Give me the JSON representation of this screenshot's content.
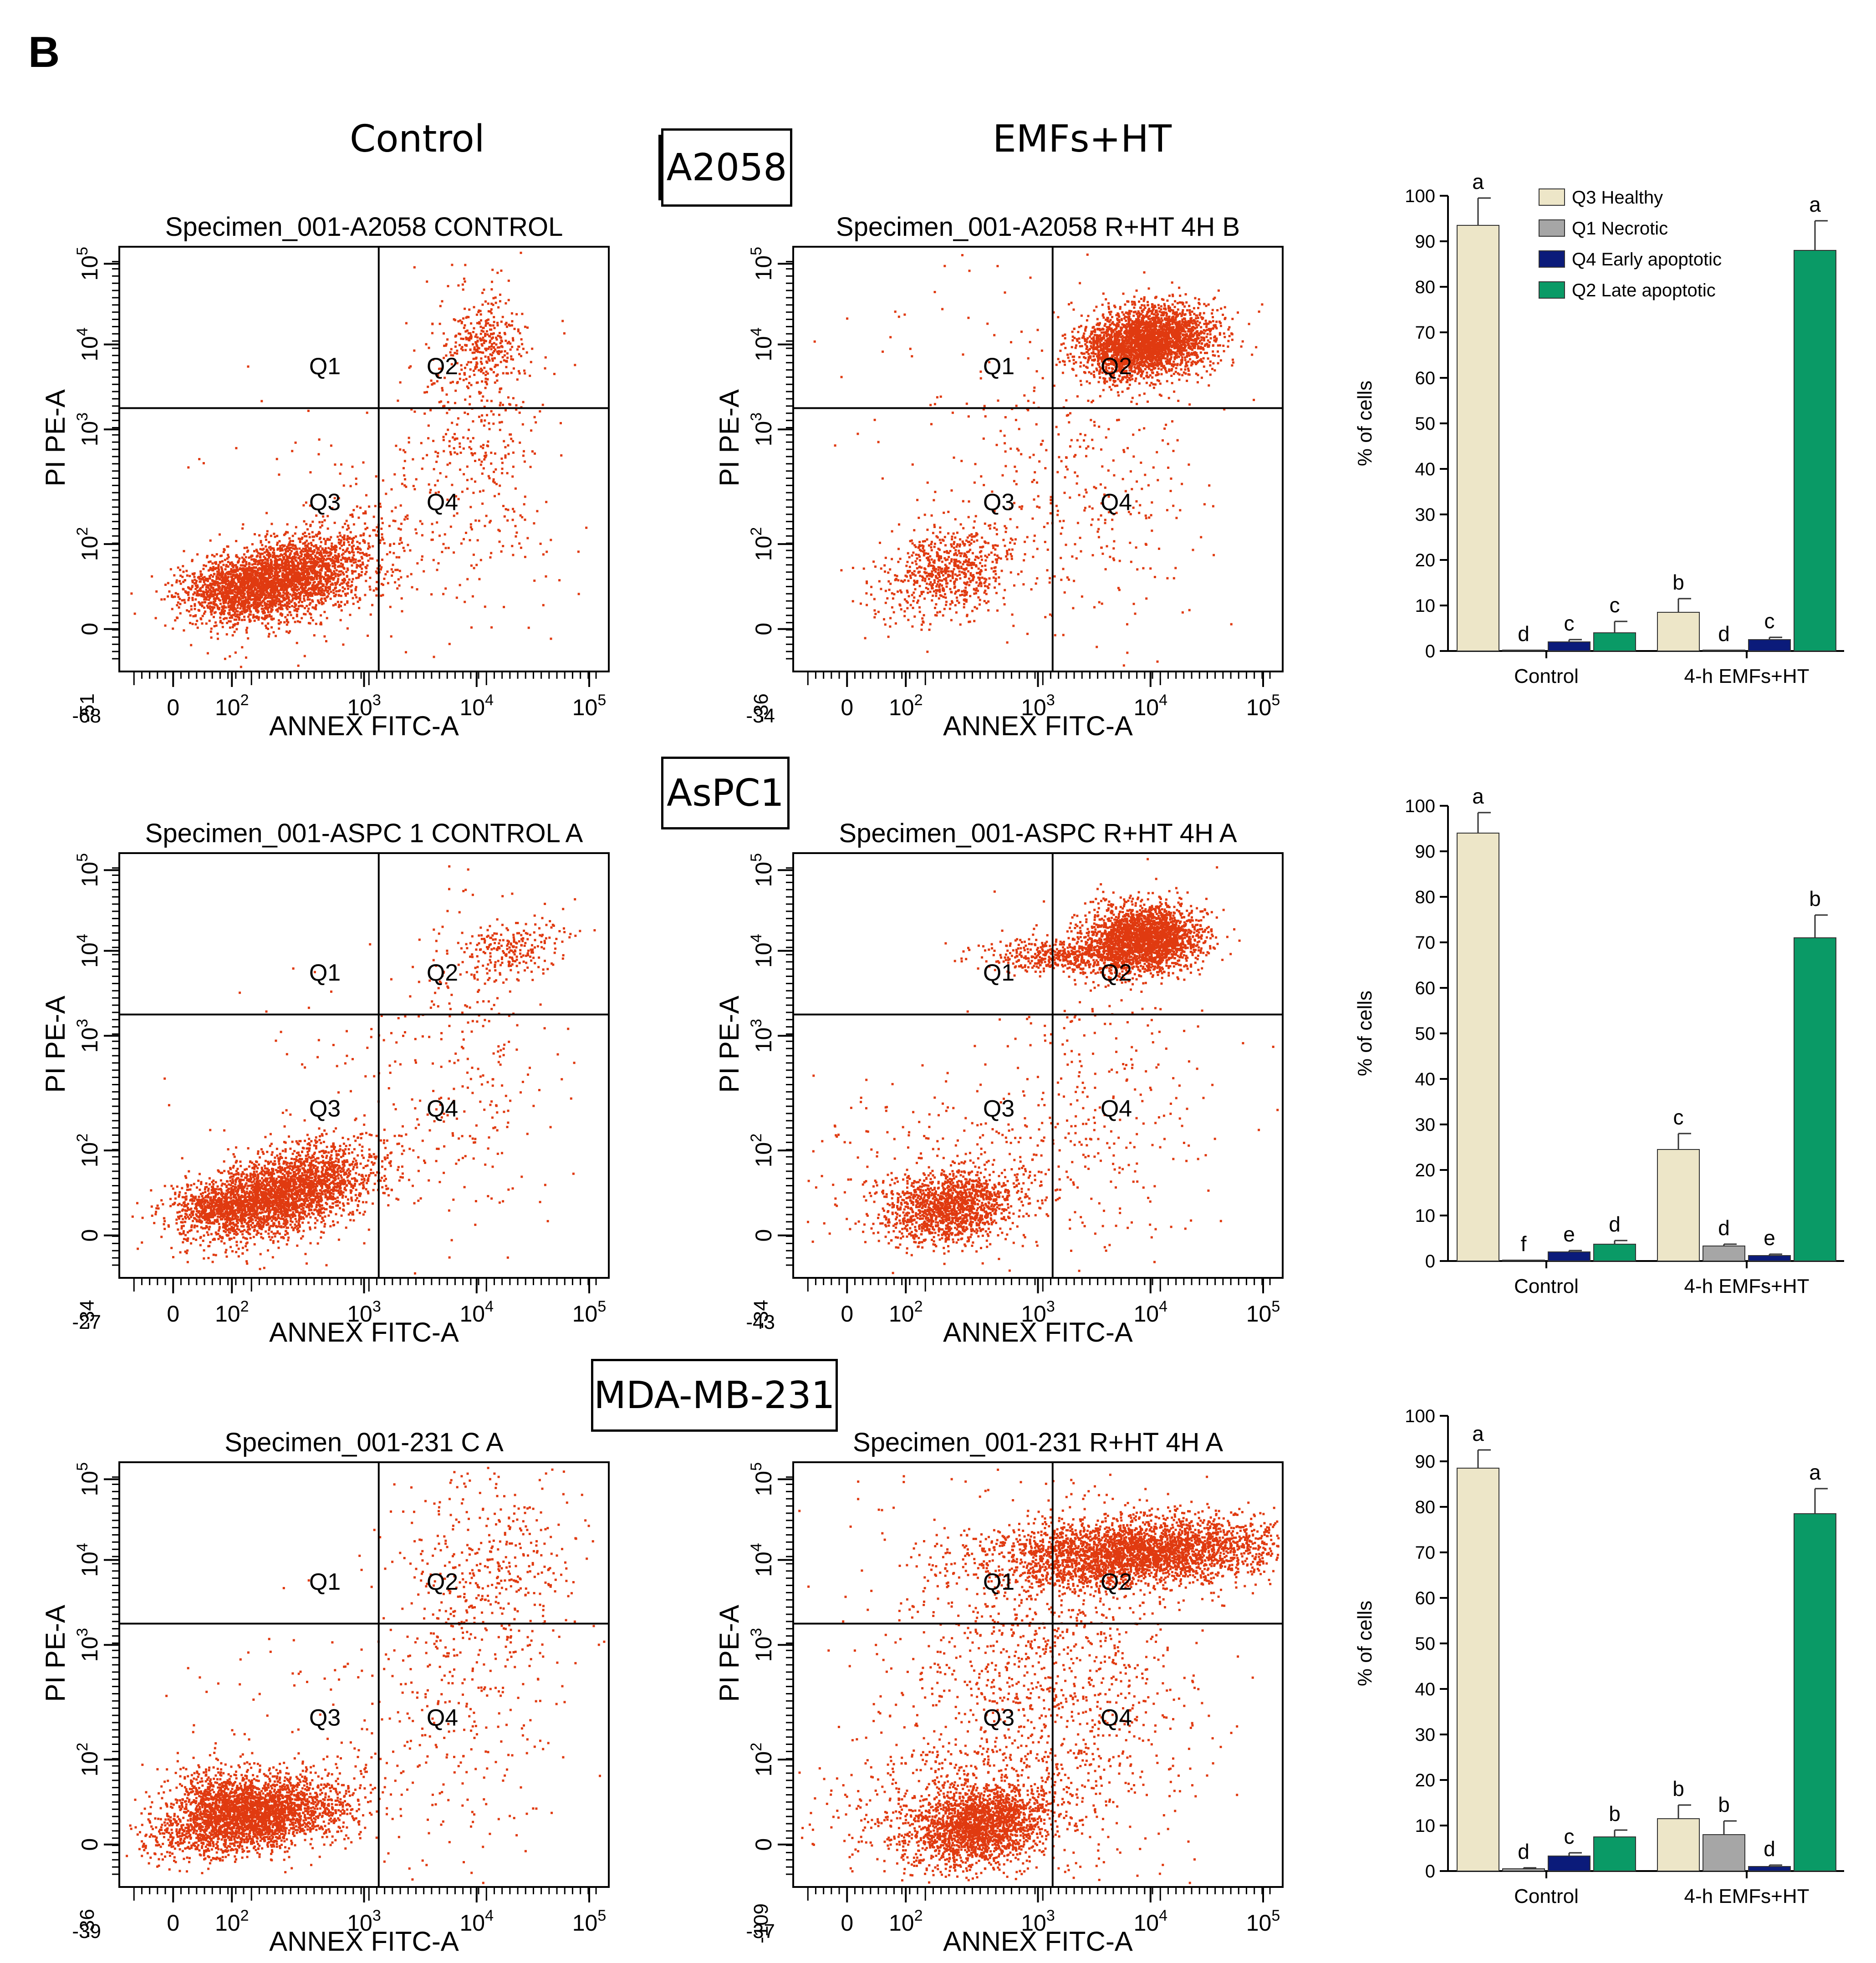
{
  "panel_letter": "B",
  "column_titles": {
    "control": "Control",
    "treated": "EMFs+HT"
  },
  "cell_lines": [
    "A2058",
    "AsPC1",
    "MDA-MB-231"
  ],
  "legend": {
    "q3": {
      "label": "Q3 Healthy",
      "color": "#ede6c8"
    },
    "q1": {
      "label": "Q1 Necrotic",
      "color": "#a6a6a6"
    },
    "q4": {
      "label": "Q4 Early apoptotic",
      "color": "#0b1b7a"
    },
    "q2": {
      "label": "Q2 Late apoptotic",
      "color": "#0a9a66"
    }
  },
  "dot_color": "#e03a10",
  "flow_plots": [
    {
      "title": "Specimen_001-A2058 CONTROL",
      "xlabel": "ANNEX FITC-A",
      "ylabel": "PI PE-A",
      "x_ticks": [
        "0",
        "10^2",
        "10^3",
        "10^4",
        "10^5"
      ],
      "x_min": "-68",
      "y_ticks": [
        "0",
        "10^2",
        "10^3",
        "10^4",
        "10^5"
      ],
      "y_min": "-51",
      "quadrants": [
        "Q1",
        "Q2",
        "Q3",
        "Q4"
      ]
    },
    {
      "title": "Specimen_001-A2058 R+HT 4H B",
      "xlabel": "ANNEX FITC-A",
      "ylabel": "PI PE-A",
      "x_ticks": [
        "0",
        "10^2",
        "10^3",
        "10^4",
        "10^5"
      ],
      "x_min": "-34",
      "y_ticks": [
        "0",
        "10^2",
        "10^3",
        "10^4",
        "10^5"
      ],
      "y_min": "-36",
      "quadrants": [
        "Q1",
        "Q2",
        "Q3",
        "Q4"
      ]
    },
    {
      "title": "Specimen_001-ASPC 1 CONTROL A",
      "xlabel": "ANNEX FITC-A",
      "ylabel": "PI PE-A",
      "x_ticks": [
        "0",
        "10^2",
        "10^3",
        "10^4",
        "10^5"
      ],
      "x_min": "-27",
      "y_ticks": [
        "0",
        "10^2",
        "10^3",
        "10^4",
        "10^5"
      ],
      "y_min": "-34",
      "quadrants": [
        "Q1",
        "Q2",
        "Q3",
        "Q4"
      ]
    },
    {
      "title": "Specimen_001-ASPC R+HT 4H A",
      "xlabel": "ANNEX FITC-A",
      "ylabel": "PI PE-A",
      "x_ticks": [
        "0",
        "10^2",
        "10^3",
        "10^4",
        "10^5"
      ],
      "x_min": "-43",
      "y_ticks": [
        "0",
        "10^2",
        "10^3",
        "10^4",
        "10^5"
      ],
      "y_min": "-34",
      "quadrants": [
        "Q1",
        "Q2",
        "Q3",
        "Q4"
      ]
    },
    {
      "title": "Specimen_001-231 C A",
      "xlabel": "ANNEX FITC-A",
      "ylabel": "PI PE-A",
      "x_ticks": [
        "0",
        "10^2",
        "10^3",
        "10^4",
        "10^5"
      ],
      "x_min": "-39",
      "y_ticks": [
        "0",
        "10^2",
        "10^3",
        "10^4",
        "10^5"
      ],
      "y_min": "-36",
      "quadrants": [
        "Q1",
        "Q2",
        "Q3",
        "Q4"
      ]
    },
    {
      "title": "Specimen_001-231 R+HT 4H A",
      "xlabel": "ANNEX FITC-A",
      "ylabel": "PI PE-A",
      "x_ticks": [
        "0",
        "10^2",
        "10^3",
        "10^4",
        "10^5"
      ],
      "x_min": "-37",
      "y_ticks": [
        "0",
        "10^2",
        "10^3",
        "10^4",
        "10^5"
      ],
      "y_min": "-109",
      "quadrants": [
        "Q1",
        "Q2",
        "Q3",
        "Q4"
      ]
    }
  ],
  "chart_data": [
    {
      "type": "bar",
      "title": "A2058",
      "ylabel": "% of cells",
      "ylim": [
        0,
        100
      ],
      "yticks": [
        0,
        10,
        20,
        30,
        40,
        50,
        60,
        70,
        80,
        90,
        100
      ],
      "categories": [
        "Control",
        "4-h EMFs+HT"
      ],
      "series": [
        {
          "name": "Q3 Healthy",
          "values": [
            93.5,
            8.5
          ],
          "errors": [
            6,
            3
          ],
          "letters": [
            "a",
            "b"
          ]
        },
        {
          "name": "Q1 Necrotic",
          "values": [
            0.2,
            0.2
          ],
          "errors": [
            0,
            0
          ],
          "letters": [
            "d",
            "d"
          ]
        },
        {
          "name": "Q4 Early apoptotic",
          "values": [
            2,
            2.5
          ],
          "errors": [
            0.5,
            0.5
          ],
          "letters": [
            "c",
            "c"
          ]
        },
        {
          "name": "Q2 Late apoptotic",
          "values": [
            4,
            88
          ],
          "errors": [
            2.5,
            6.5
          ],
          "letters": [
            "c",
            "a"
          ]
        }
      ]
    },
    {
      "type": "bar",
      "title": "AsPC1",
      "ylabel": "% of cells",
      "ylim": [
        0,
        100
      ],
      "yticks": [
        0,
        10,
        20,
        30,
        40,
        50,
        60,
        70,
        80,
        90,
        100
      ],
      "categories": [
        "Control",
        "4-h EMFs+HT"
      ],
      "series": [
        {
          "name": "Q3 Healthy",
          "values": [
            94,
            24.5
          ],
          "errors": [
            4.5,
            3.5
          ],
          "letters": [
            "a",
            "c"
          ]
        },
        {
          "name": "Q1 Necrotic",
          "values": [
            0.2,
            3.3
          ],
          "errors": [
            0,
            0.4
          ],
          "letters": [
            "f",
            "d"
          ]
        },
        {
          "name": "Q4 Early apoptotic",
          "values": [
            2,
            1.2
          ],
          "errors": [
            0.3,
            0.3
          ],
          "letters": [
            "e",
            "e"
          ]
        },
        {
          "name": "Q2 Late apoptotic",
          "values": [
            3.7,
            71
          ],
          "errors": [
            0.8,
            5
          ],
          "letters": [
            "d",
            "b"
          ]
        }
      ]
    },
    {
      "type": "bar",
      "title": "MDA-MB-231",
      "ylabel": "% of cells",
      "ylim": [
        0,
        100
      ],
      "yticks": [
        0,
        10,
        20,
        30,
        40,
        50,
        60,
        70,
        80,
        90,
        100
      ],
      "categories": [
        "Control",
        "4-h EMFs+HT"
      ],
      "series": [
        {
          "name": "Q3 Healthy",
          "values": [
            88.5,
            11.5
          ],
          "errors": [
            4,
            3
          ],
          "letters": [
            "a",
            "b"
          ]
        },
        {
          "name": "Q1 Necrotic",
          "values": [
            0.5,
            8
          ],
          "errors": [
            0.2,
            3
          ],
          "letters": [
            "d",
            "b"
          ]
        },
        {
          "name": "Q4 Early apoptotic",
          "values": [
            3.3,
            1
          ],
          "errors": [
            0.7,
            0.3
          ],
          "letters": [
            "c",
            "d"
          ]
        },
        {
          "name": "Q2 Late apoptotic",
          "values": [
            7.5,
            78.5
          ],
          "errors": [
            1.5,
            5.5
          ],
          "letters": [
            "b",
            "a"
          ]
        }
      ]
    }
  ]
}
